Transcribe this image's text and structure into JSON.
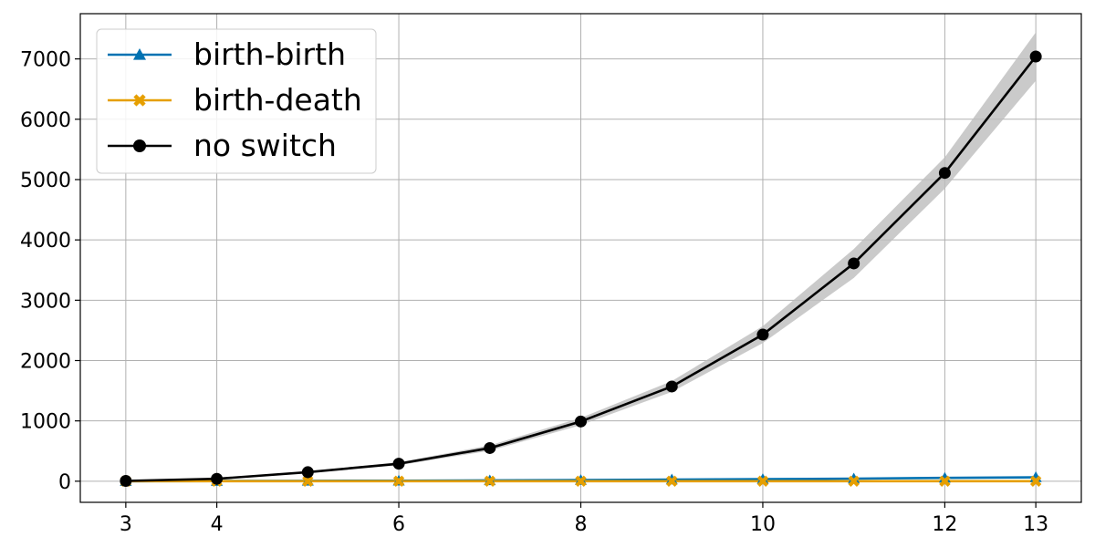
{
  "chart_data": {
    "type": "line",
    "title": "",
    "xlabel": "",
    "ylabel": "",
    "x": [
      3,
      4,
      5,
      6,
      7,
      8,
      9,
      10,
      11,
      12,
      13
    ],
    "x_ticks": [
      3,
      4,
      6,
      8,
      10,
      12,
      13
    ],
    "y_ticks": [
      0,
      1000,
      2000,
      3000,
      4000,
      5000,
      6000,
      7000
    ],
    "xlim": [
      2.5,
      13.5
    ],
    "ylim": [
      -350,
      7750
    ],
    "grid": true,
    "legend_position": "top-left",
    "series": [
      {
        "name": "birth-birth",
        "color": "#0072b2",
        "marker": "triangle",
        "values": [
          1,
          3,
          6,
          9,
          13,
          19,
          27,
          34,
          43,
          55,
          65
        ],
        "band_lower": [
          1,
          3,
          6,
          9,
          13,
          19,
          27,
          34,
          43,
          55,
          65
        ],
        "band_upper": [
          1,
          3,
          6,
          9,
          13,
          19,
          27,
          34,
          43,
          55,
          65
        ]
      },
      {
        "name": "birth-death",
        "color": "#e69f00",
        "marker": "x-filled",
        "values": [
          0,
          1,
          1,
          1,
          1,
          1,
          1,
          1,
          1,
          1,
          1
        ],
        "band_lower": [
          0,
          1,
          1,
          1,
          1,
          1,
          1,
          1,
          1,
          1,
          1
        ],
        "band_upper": [
          0,
          1,
          1,
          1,
          1,
          1,
          1,
          1,
          1,
          1,
          1
        ]
      },
      {
        "name": "no switch",
        "color": "#000000",
        "marker": "circle",
        "values": [
          5,
          40,
          150,
          290,
          550,
          990,
          1570,
          2430,
          3610,
          5110,
          7040
        ],
        "band_lower": [
          5,
          35,
          135,
          265,
          505,
          930,
          1480,
          2290,
          3370,
          4850,
          6640
        ],
        "band_upper": [
          5,
          45,
          165,
          315,
          595,
          1050,
          1660,
          2570,
          3850,
          5370,
          7440
        ],
        "band_color": "#bdbdbd"
      }
    ]
  }
}
